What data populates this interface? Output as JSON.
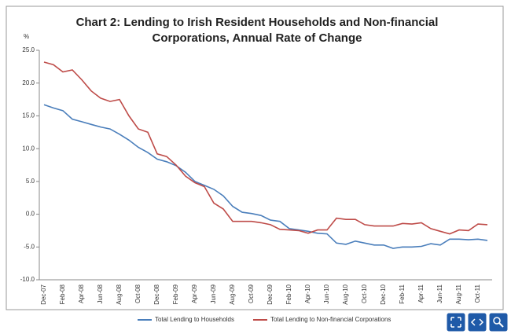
{
  "chart_data": {
    "type": "line",
    "title": [
      "Chart 2: Lending to Irish Resident Households and Non-financial",
      "Corporations, Annual Rate of Change"
    ],
    "y_label": "%",
    "categories": [
      "Dec-07",
      null,
      "Feb-08",
      null,
      "Apr-08",
      null,
      "Jun-08",
      null,
      "Aug-08",
      null,
      "Oct-08",
      null,
      "Dec-08",
      null,
      "Feb-09",
      null,
      "Apr-09",
      null,
      "Jun-09",
      null,
      "Aug-09",
      null,
      "Oct-09",
      null,
      "Dec-09",
      null,
      "Feb-10",
      null,
      "Apr-10",
      null,
      "Jun-10",
      null,
      "Aug-10",
      null,
      "Oct-10",
      null,
      "Dec-10",
      null,
      "Feb-11",
      null,
      "Apr-11",
      null,
      "Jun-11",
      null,
      "Aug-11",
      null,
      "Oct-11",
      null
    ],
    "series": [
      {
        "name": "Total Lending to Households",
        "color": "#4a7ebb",
        "values": [
          16.7,
          16.2,
          15.8,
          14.5,
          14.1,
          13.7,
          13.3,
          13.0,
          12.2,
          11.3,
          10.2,
          9.4,
          8.4,
          8.0,
          7.4,
          6.4,
          5.0,
          4.4,
          3.8,
          2.8,
          1.2,
          0.3,
          0.1,
          -0.2,
          -0.9,
          -1.1,
          -2.2,
          -2.4,
          -2.6,
          -2.9,
          -3.0,
          -4.4,
          -4.6,
          -4.1,
          -4.4,
          -4.7,
          -4.7,
          -5.2,
          -5.0,
          -5.0,
          -4.9,
          -4.5,
          -4.7,
          -3.8,
          -3.8,
          -3.9,
          -3.8,
          -4.0
        ]
      },
      {
        "name": "Total Lending to Non-financial Corporations",
        "color": "#be4b48",
        "values": [
          23.2,
          22.8,
          21.7,
          22.0,
          20.5,
          18.8,
          17.7,
          17.2,
          17.5,
          15.0,
          13.0,
          12.5,
          9.2,
          8.8,
          7.5,
          5.8,
          4.8,
          4.2,
          1.7,
          0.8,
          -1.1,
          -1.1,
          -1.1,
          -1.3,
          -1.6,
          -2.3,
          -2.4,
          -2.5,
          -2.9,
          -2.4,
          -2.4,
          -0.6,
          -0.8,
          -0.8,
          -1.6,
          -1.8,
          -1.8,
          -1.8,
          -1.4,
          -1.5,
          -1.3,
          -2.2,
          -2.6,
          -3.0,
          -2.4,
          -2.5,
          -1.5,
          -1.6
        ]
      }
    ],
    "ylim": [
      -10,
      25
    ],
    "yticks": [
      {
        "value": -10,
        "label": "-10.0"
      },
      {
        "value": -5,
        "label": "-5.0"
      },
      {
        "value": 0,
        "label": "0.0"
      },
      {
        "value": 5,
        "label": "5.0"
      },
      {
        "value": 10,
        "label": "10.0"
      },
      {
        "value": 15,
        "label": "15.0"
      },
      {
        "value": 20,
        "label": "20.0"
      },
      {
        "value": 25,
        "label": "25.0"
      }
    ],
    "grid": false,
    "legend": "bottom"
  }
}
